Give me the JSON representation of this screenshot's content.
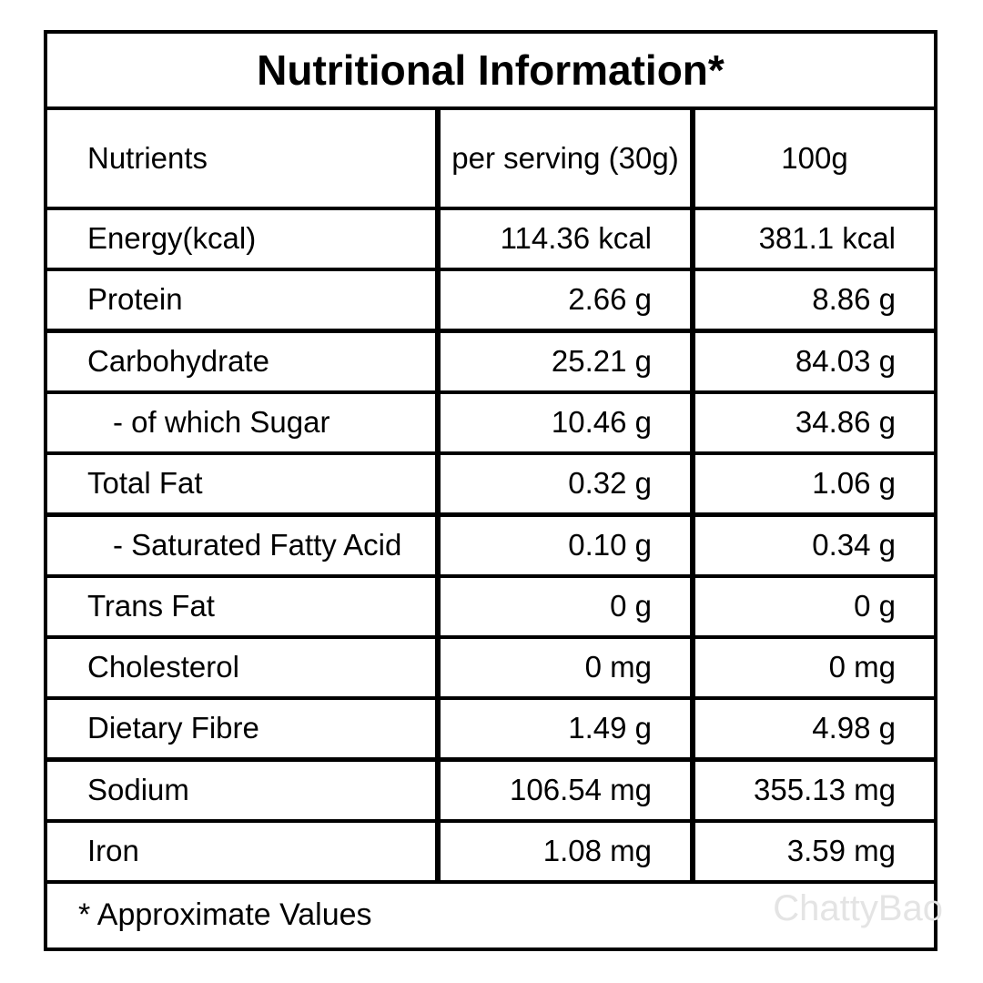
{
  "title": "Nutritional Information*",
  "table": {
    "header": [
      "Nutrients",
      "per serving (30g)",
      "100g"
    ],
    "rows": [
      [
        "Energy(kcal)",
        "114.36 kcal",
        "381.1 kcal"
      ],
      [
        "Protein",
        "2.66 g",
        "8.86 g"
      ],
      [
        "Carbohydrate",
        "25.21 g",
        "84.03 g"
      ],
      [
        "- of which Sugar",
        "10.46 g",
        "34.86 g"
      ],
      [
        "Total Fat",
        "0.32 g",
        "1.06 g"
      ],
      [
        "- Saturated Fatty Acid",
        "0.10 g",
        "0.34 g"
      ],
      [
        "Trans Fat",
        "0 g",
        "0 g"
      ],
      [
        "Cholesterol",
        "0 mg",
        "0 mg"
      ],
      [
        "Dietary Fibre",
        "1.49 g",
        "4.98 g"
      ],
      [
        "Sodium",
        "106.54 mg",
        "355.13 mg"
      ],
      [
        "Iron",
        "1.08 mg",
        "3.59 mg"
      ]
    ]
  },
  "footnote": "* Approximate Values",
  "watermark": "ChattyBao"
}
